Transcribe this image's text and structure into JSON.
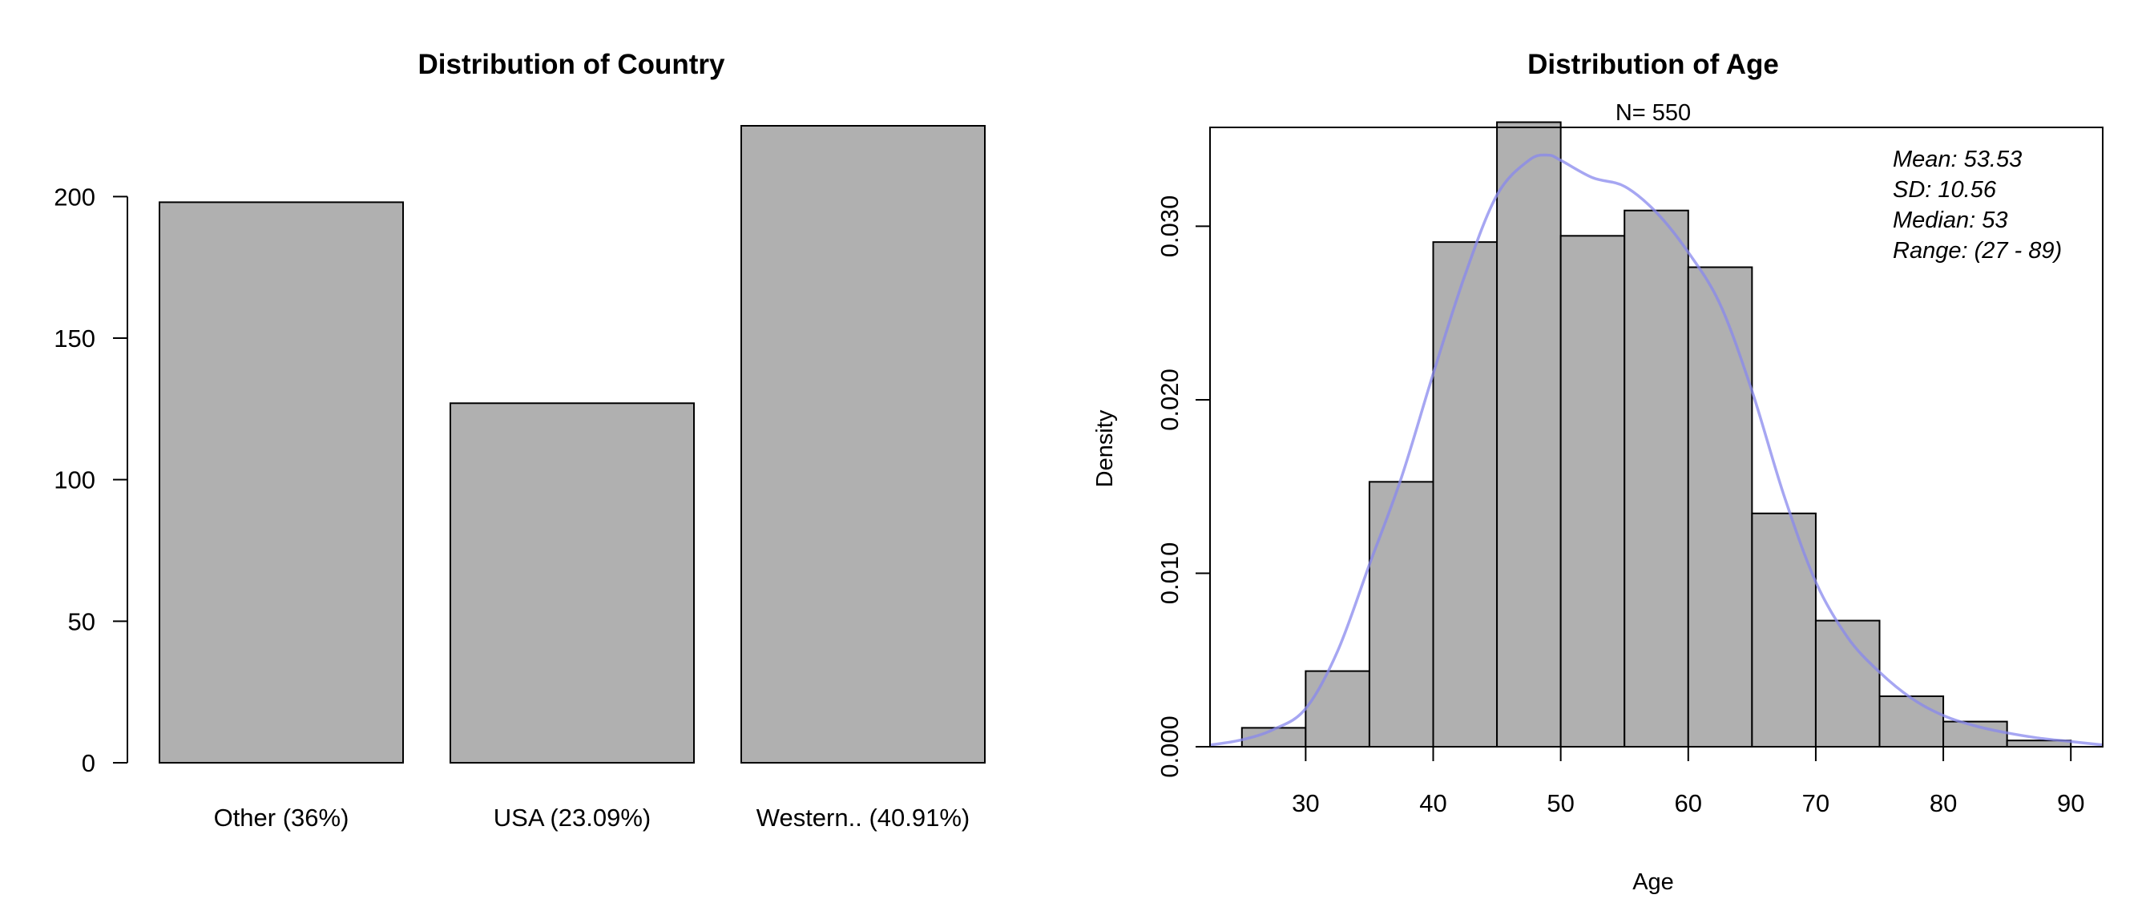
{
  "colors": {
    "bar_fill": "#b0b0b0",
    "bar_stroke": "#000000",
    "density_line": "#8888ee",
    "background": "#ffffff"
  },
  "chart_data": [
    {
      "type": "bar",
      "title": "Distribution of Country",
      "xlabel": "",
      "ylabel": "",
      "categories": [
        "Other (36%)",
        "USA (23.09%)",
        "Western.. (40.91%)"
      ],
      "values": [
        198,
        127,
        225
      ],
      "ylim": [
        0,
        225
      ],
      "yticks": [
        0,
        50,
        100,
        150,
        200
      ],
      "grid": false
    },
    {
      "type": "bar",
      "title": "Distribution of Age",
      "subtitle": "N= 550",
      "xlabel": "Age",
      "ylabel": "Density",
      "bin_width": 5,
      "bins": [
        {
          "start": 25,
          "end": 30,
          "density": 0.00109
        },
        {
          "start": 30,
          "end": 35,
          "density": 0.00436
        },
        {
          "start": 35,
          "end": 40,
          "density": 0.01527
        },
        {
          "start": 40,
          "end": 45,
          "density": 0.02909
        },
        {
          "start": 45,
          "end": 50,
          "density": 0.036
        },
        {
          "start": 50,
          "end": 55,
          "density": 0.02945
        },
        {
          "start": 55,
          "end": 60,
          "density": 0.03091
        },
        {
          "start": 60,
          "end": 65,
          "density": 0.02764
        },
        {
          "start": 65,
          "end": 70,
          "density": 0.01345
        },
        {
          "start": 70,
          "end": 75,
          "density": 0.00727
        },
        {
          "start": 75,
          "end": 80,
          "density": 0.00291
        },
        {
          "start": 80,
          "end": 85,
          "density": 0.00145
        },
        {
          "start": 85,
          "end": 90,
          "density": 0.00036
        }
      ],
      "density_curve": {
        "x": [
          22.5,
          25,
          27.5,
          30,
          32.5,
          35,
          37.5,
          40,
          42.5,
          45,
          47.5,
          49,
          50,
          52.5,
          55,
          57.5,
          60,
          62.5,
          65,
          67.5,
          70,
          72.5,
          75,
          77.5,
          80,
          82.5,
          85,
          87.5,
          90,
          92.5
        ],
        "y": [
          0.0001,
          0.0004,
          0.001,
          0.0022,
          0.0055,
          0.0105,
          0.0155,
          0.0215,
          0.0272,
          0.0318,
          0.0338,
          0.0341,
          0.0338,
          0.0328,
          0.0323,
          0.0308,
          0.0285,
          0.0255,
          0.0205,
          0.0145,
          0.0095,
          0.0063,
          0.0043,
          0.0028,
          0.0018,
          0.0012,
          0.0008,
          0.0005,
          0.0003,
          0.0001
        ]
      },
      "xlim": [
        22.5,
        92.5
      ],
      "ylim": [
        0,
        0.0357
      ],
      "xticks": [
        30,
        40,
        50,
        60,
        70,
        80,
        90
      ],
      "yticks": [
        "0.000",
        "0.010",
        "0.020",
        "0.030"
      ],
      "stats": [
        "Mean: 53.53",
        "SD: 10.56",
        "Median: 53",
        "Range: (27 - 89)"
      ],
      "grid": false
    }
  ]
}
